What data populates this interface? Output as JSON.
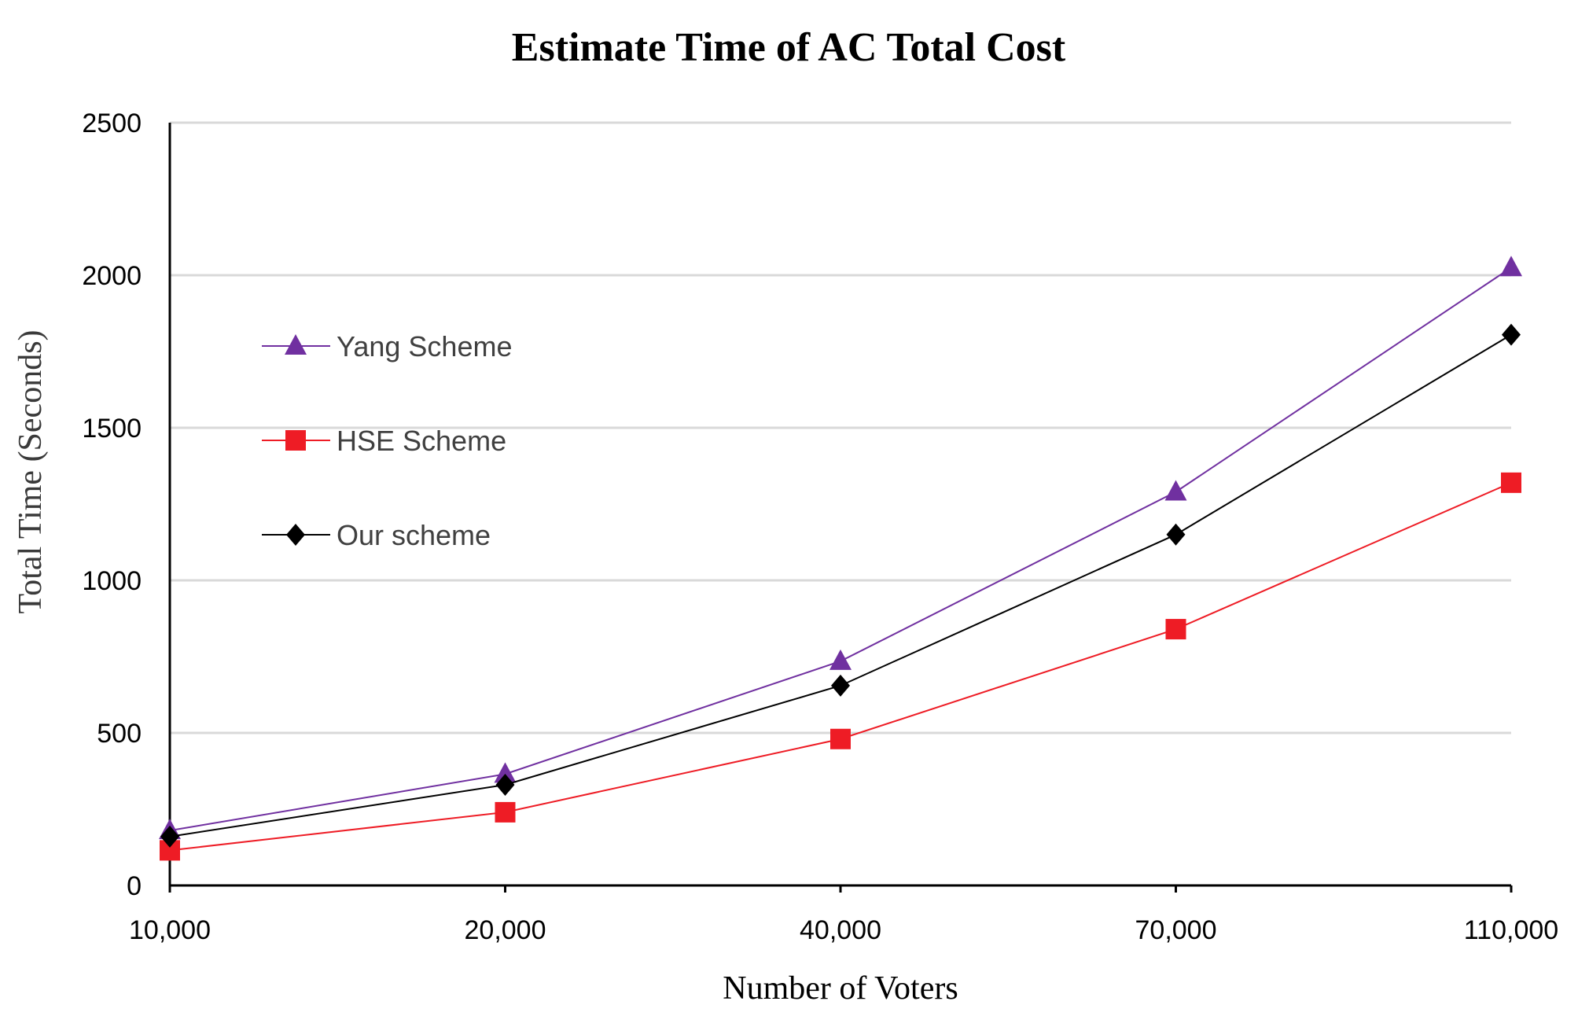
{
  "chart_data": {
    "type": "line",
    "title": "Estimate Time of  AC Total Cost",
    "xlabel": "Number of Voters",
    "ylabel": "Total  Time (Seconds)",
    "categories": [
      "10,000",
      "20,000",
      "40,000",
      "70,000",
      "110,000"
    ],
    "ylim": [
      0,
      2500
    ],
    "yticks": [
      0,
      500,
      1000,
      1500,
      2000,
      2500
    ],
    "grid": true,
    "legend_position": "left",
    "series": [
      {
        "name": "Yang Scheme",
        "marker": "triangle",
        "color": "#7030a0",
        "values": [
          180,
          365,
          735,
          1290,
          2025
        ]
      },
      {
        "name": "HSE Scheme",
        "marker": "square",
        "color": "#ee1c25",
        "values": [
          115,
          240,
          480,
          840,
          1320
        ]
      },
      {
        "name": "Our scheme",
        "marker": "diamond",
        "color": "#000000",
        "values": [
          160,
          330,
          655,
          1150,
          1805
        ]
      }
    ]
  }
}
